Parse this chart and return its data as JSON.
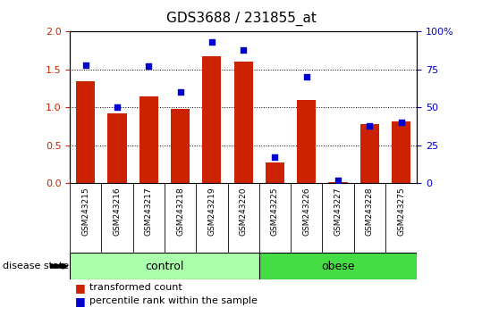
{
  "title": "GDS3688 / 231855_at",
  "samples": [
    "GSM243215",
    "GSM243216",
    "GSM243217",
    "GSM243218",
    "GSM243219",
    "GSM243220",
    "GSM243225",
    "GSM243226",
    "GSM243227",
    "GSM243228",
    "GSM243275"
  ],
  "transformed_count": [
    1.35,
    0.92,
    1.15,
    0.98,
    1.68,
    1.6,
    0.27,
    1.1,
    0.02,
    0.78,
    0.82
  ],
  "percentile_rank": [
    78,
    50,
    77,
    60,
    93,
    88,
    17,
    70,
    2,
    38,
    40
  ],
  "control_indices": [
    0,
    1,
    2,
    3,
    4,
    5
  ],
  "obese_indices": [
    6,
    7,
    8,
    9,
    10
  ],
  "control_color": "#AAFFAA",
  "obese_color": "#44DD44",
  "bar_color": "#CC2200",
  "dot_color": "#0000CC",
  "ylim_left": [
    0,
    2
  ],
  "ylim_right": [
    0,
    100
  ],
  "yticks_left": [
    0,
    0.5,
    1.0,
    1.5,
    2.0
  ],
  "yticks_right": [
    0,
    25,
    50,
    75,
    100
  ],
  "legend_labels": [
    "transformed count",
    "percentile rank within the sample"
  ],
  "label_color_left": "#CC2200",
  "label_color_right": "#0000CC",
  "xtick_bg_color": "#C8C8C8",
  "background_color": "#ffffff"
}
